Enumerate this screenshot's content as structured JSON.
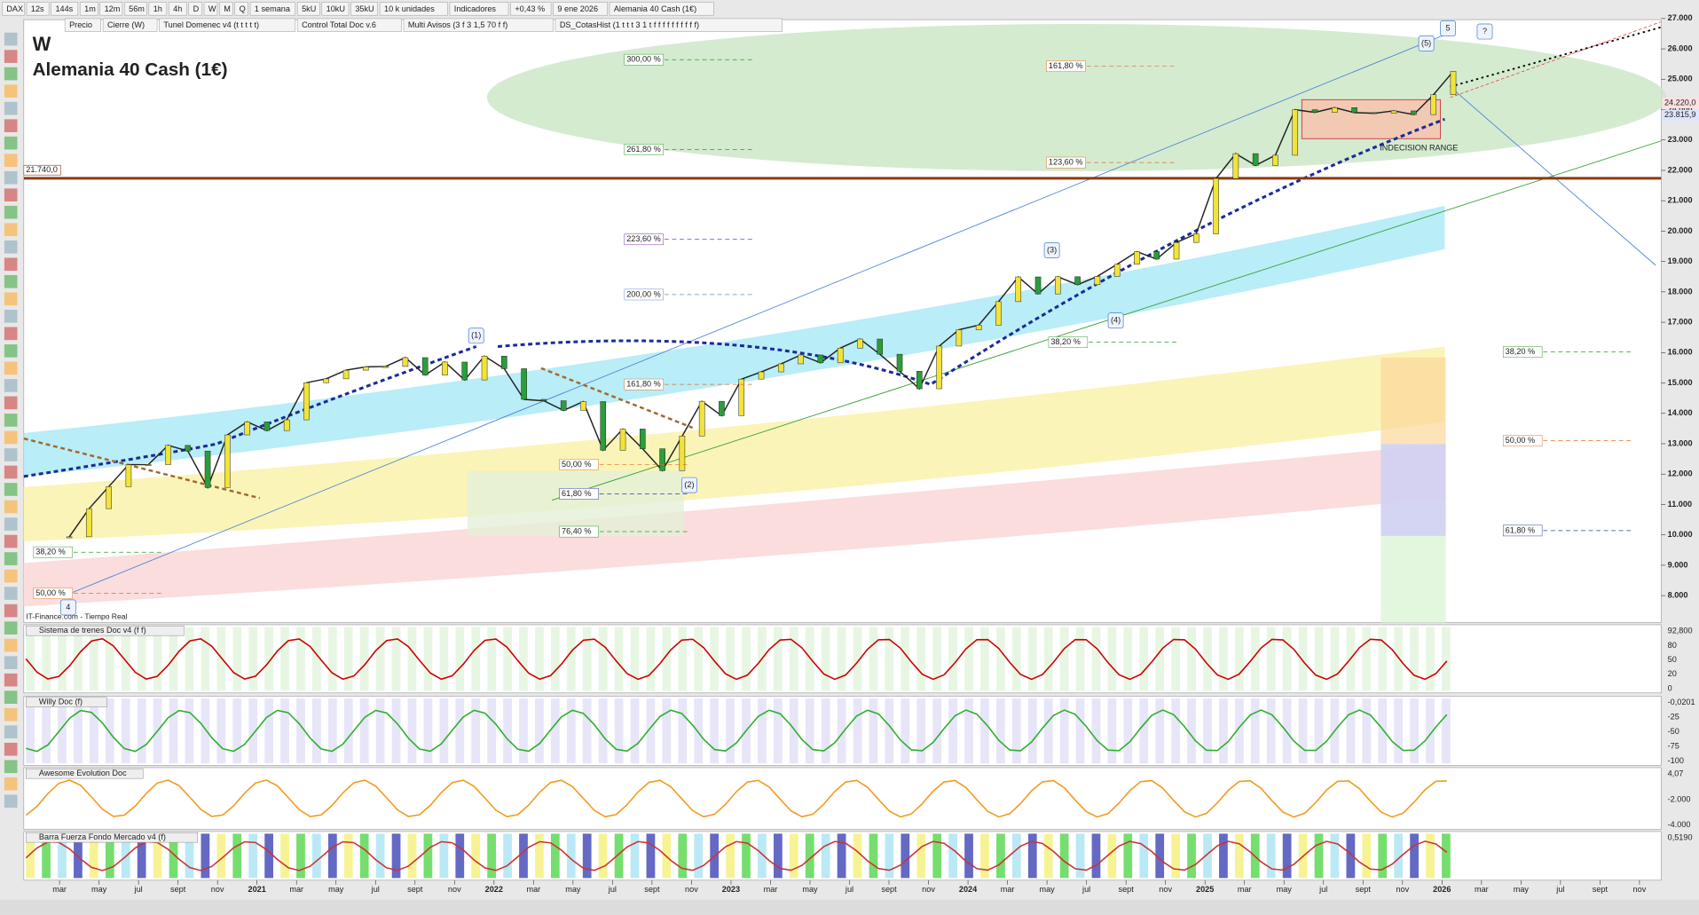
{
  "toolbar": {
    "symbol": "DAX",
    "timeframes": [
      "12s",
      "144s",
      "1m",
      "12m",
      "56m",
      "1h",
      "4h",
      "D",
      "W",
      "M",
      "Q"
    ],
    "period": "1 semana",
    "units": [
      "5kU",
      "10kU",
      "35kU"
    ],
    "unit_label": "10 k unidades",
    "indicators": "Indicadores",
    "change": "+0,43 %",
    "date": "9 ene 2026",
    "instrument": "Alemania 40 Cash (1€)"
  },
  "indicator_tabs": [
    "Precio",
    "Cierre (W)",
    "Tunel Domenec v4 (t t t t t)",
    "Control Total Doc v.6",
    "Multi Avisos (3 f 3 1,5 70 f f)",
    "DS_CotasHist (1 t t t 3 1 t f f f f f f f f f f)"
  ],
  "price_chart": {
    "interval": "W",
    "title": "Alemania 40 Cash (1€)",
    "source": "IT-Finance.com - Tiempo Real",
    "monthly_close": [
      9936,
      10862,
      11587,
      12311,
      12313,
      12945,
      12761,
      11556,
      13291,
      13719,
      13433,
      13786,
      15008,
      15136,
      15421,
      15531,
      15544,
      15835,
      15261,
      15689,
      15100,
      15885,
      15471,
      14461,
      14415,
      14098,
      14388,
      12784,
      13484,
      12835,
      12114,
      13254,
      14397,
      13924,
      15128,
      15365,
      15629,
      15922,
      15664,
      16148,
      16447,
      15947,
      15387,
      14810,
      16215,
      16752,
      16904,
      17678,
      18492,
      17932,
      18498,
      18235,
      18509,
      18907,
      19325,
      19078,
      19626,
      19909,
      21732,
      22551,
      22163,
      22497,
      23997,
      23909,
      24065,
      23902,
      23881,
      23958,
      23836,
      24490,
      25260
    ],
    "price_axis": [
      {
        "value": 27000,
        "label": "27.000"
      },
      {
        "value": 26000,
        "label": "26.000"
      },
      {
        "value": 25000,
        "label": "25.000"
      },
      {
        "value": 24000,
        "label": "24.000"
      },
      {
        "value": 23000,
        "label": "23.000"
      },
      {
        "value": 22000,
        "label": "22.000"
      },
      {
        "value": 21000,
        "label": "21.000"
      },
      {
        "value": 20000,
        "label": "20.000"
      },
      {
        "value": 19000,
        "label": "19.000"
      },
      {
        "value": 18000,
        "label": "18.000"
      },
      {
        "value": 17000,
        "label": "17.000"
      },
      {
        "value": 16000,
        "label": "16.000"
      },
      {
        "value": 15000,
        "label": "15.000"
      },
      {
        "value": 14000,
        "label": "14.000"
      },
      {
        "value": 13000,
        "label": "13.000"
      },
      {
        "value": 12000,
        "label": "12.000"
      },
      {
        "value": 11000,
        "label": "11.000"
      },
      {
        "value": 10000,
        "label": "10.000"
      },
      {
        "value": 9000,
        "label": "9.000"
      },
      {
        "value": 8000,
        "label": "8.000"
      }
    ],
    "price_tags": [
      {
        "value": 24220,
        "label": "24.220,0"
      },
      {
        "value": 23815.9,
        "label": "23.815,9"
      }
    ],
    "level_label": {
      "value": 21740,
      "label": "21.740,0"
    },
    "fib_labels": [
      "300,00 %",
      "161,80 %",
      "261,80 %",
      "123,60 %",
      "223,60 %",
      "200,00 %",
      "161,80 %",
      "50,00 %",
      "61,80 %",
      "76,40 %",
      "38,20 %",
      "50,00 %",
      "38,20 %",
      "50,00 %",
      "61,80 %",
      "38,20 %"
    ],
    "wave_labels": [
      "(1)",
      "(2)",
      "(3)",
      "(4)",
      "(5)",
      "4",
      "5",
      "?"
    ],
    "box_label": "INDECISION RANGE"
  },
  "panels": [
    {
      "title": "Sistema de trenes Doc v4 (f f)",
      "axis_labels": [
        "92,800",
        "80",
        "50",
        "20",
        "0"
      ]
    },
    {
      "title": "Willy Doc (f)",
      "axis_labels": [
        "-0,0201",
        "-25",
        "-50",
        "-75",
        "-100"
      ]
    },
    {
      "title": "Awesome Evolution Doc",
      "axis_labels": [
        "4,07",
        "-2.000",
        "-4.000"
      ]
    },
    {
      "title": "Barra Fuerza Fondo Mercado v4 (f)",
      "axis_labels": [
        "0,5190"
      ]
    }
  ],
  "time_axis": [
    "mar",
    "may",
    "jul",
    "sept",
    "nov",
    "2021",
    "mar",
    "may",
    "jul",
    "sept",
    "nov",
    "2022",
    "mar",
    "may",
    "jul",
    "sept",
    "nov",
    "2023",
    "mar",
    "may",
    "jul",
    "sept",
    "nov",
    "2024",
    "mar",
    "may",
    "jul",
    "sept",
    "nov",
    "2025",
    "mar",
    "may",
    "jul",
    "sept",
    "nov",
    "2026",
    "mar",
    "may",
    "jul",
    "sept",
    "nov"
  ]
}
